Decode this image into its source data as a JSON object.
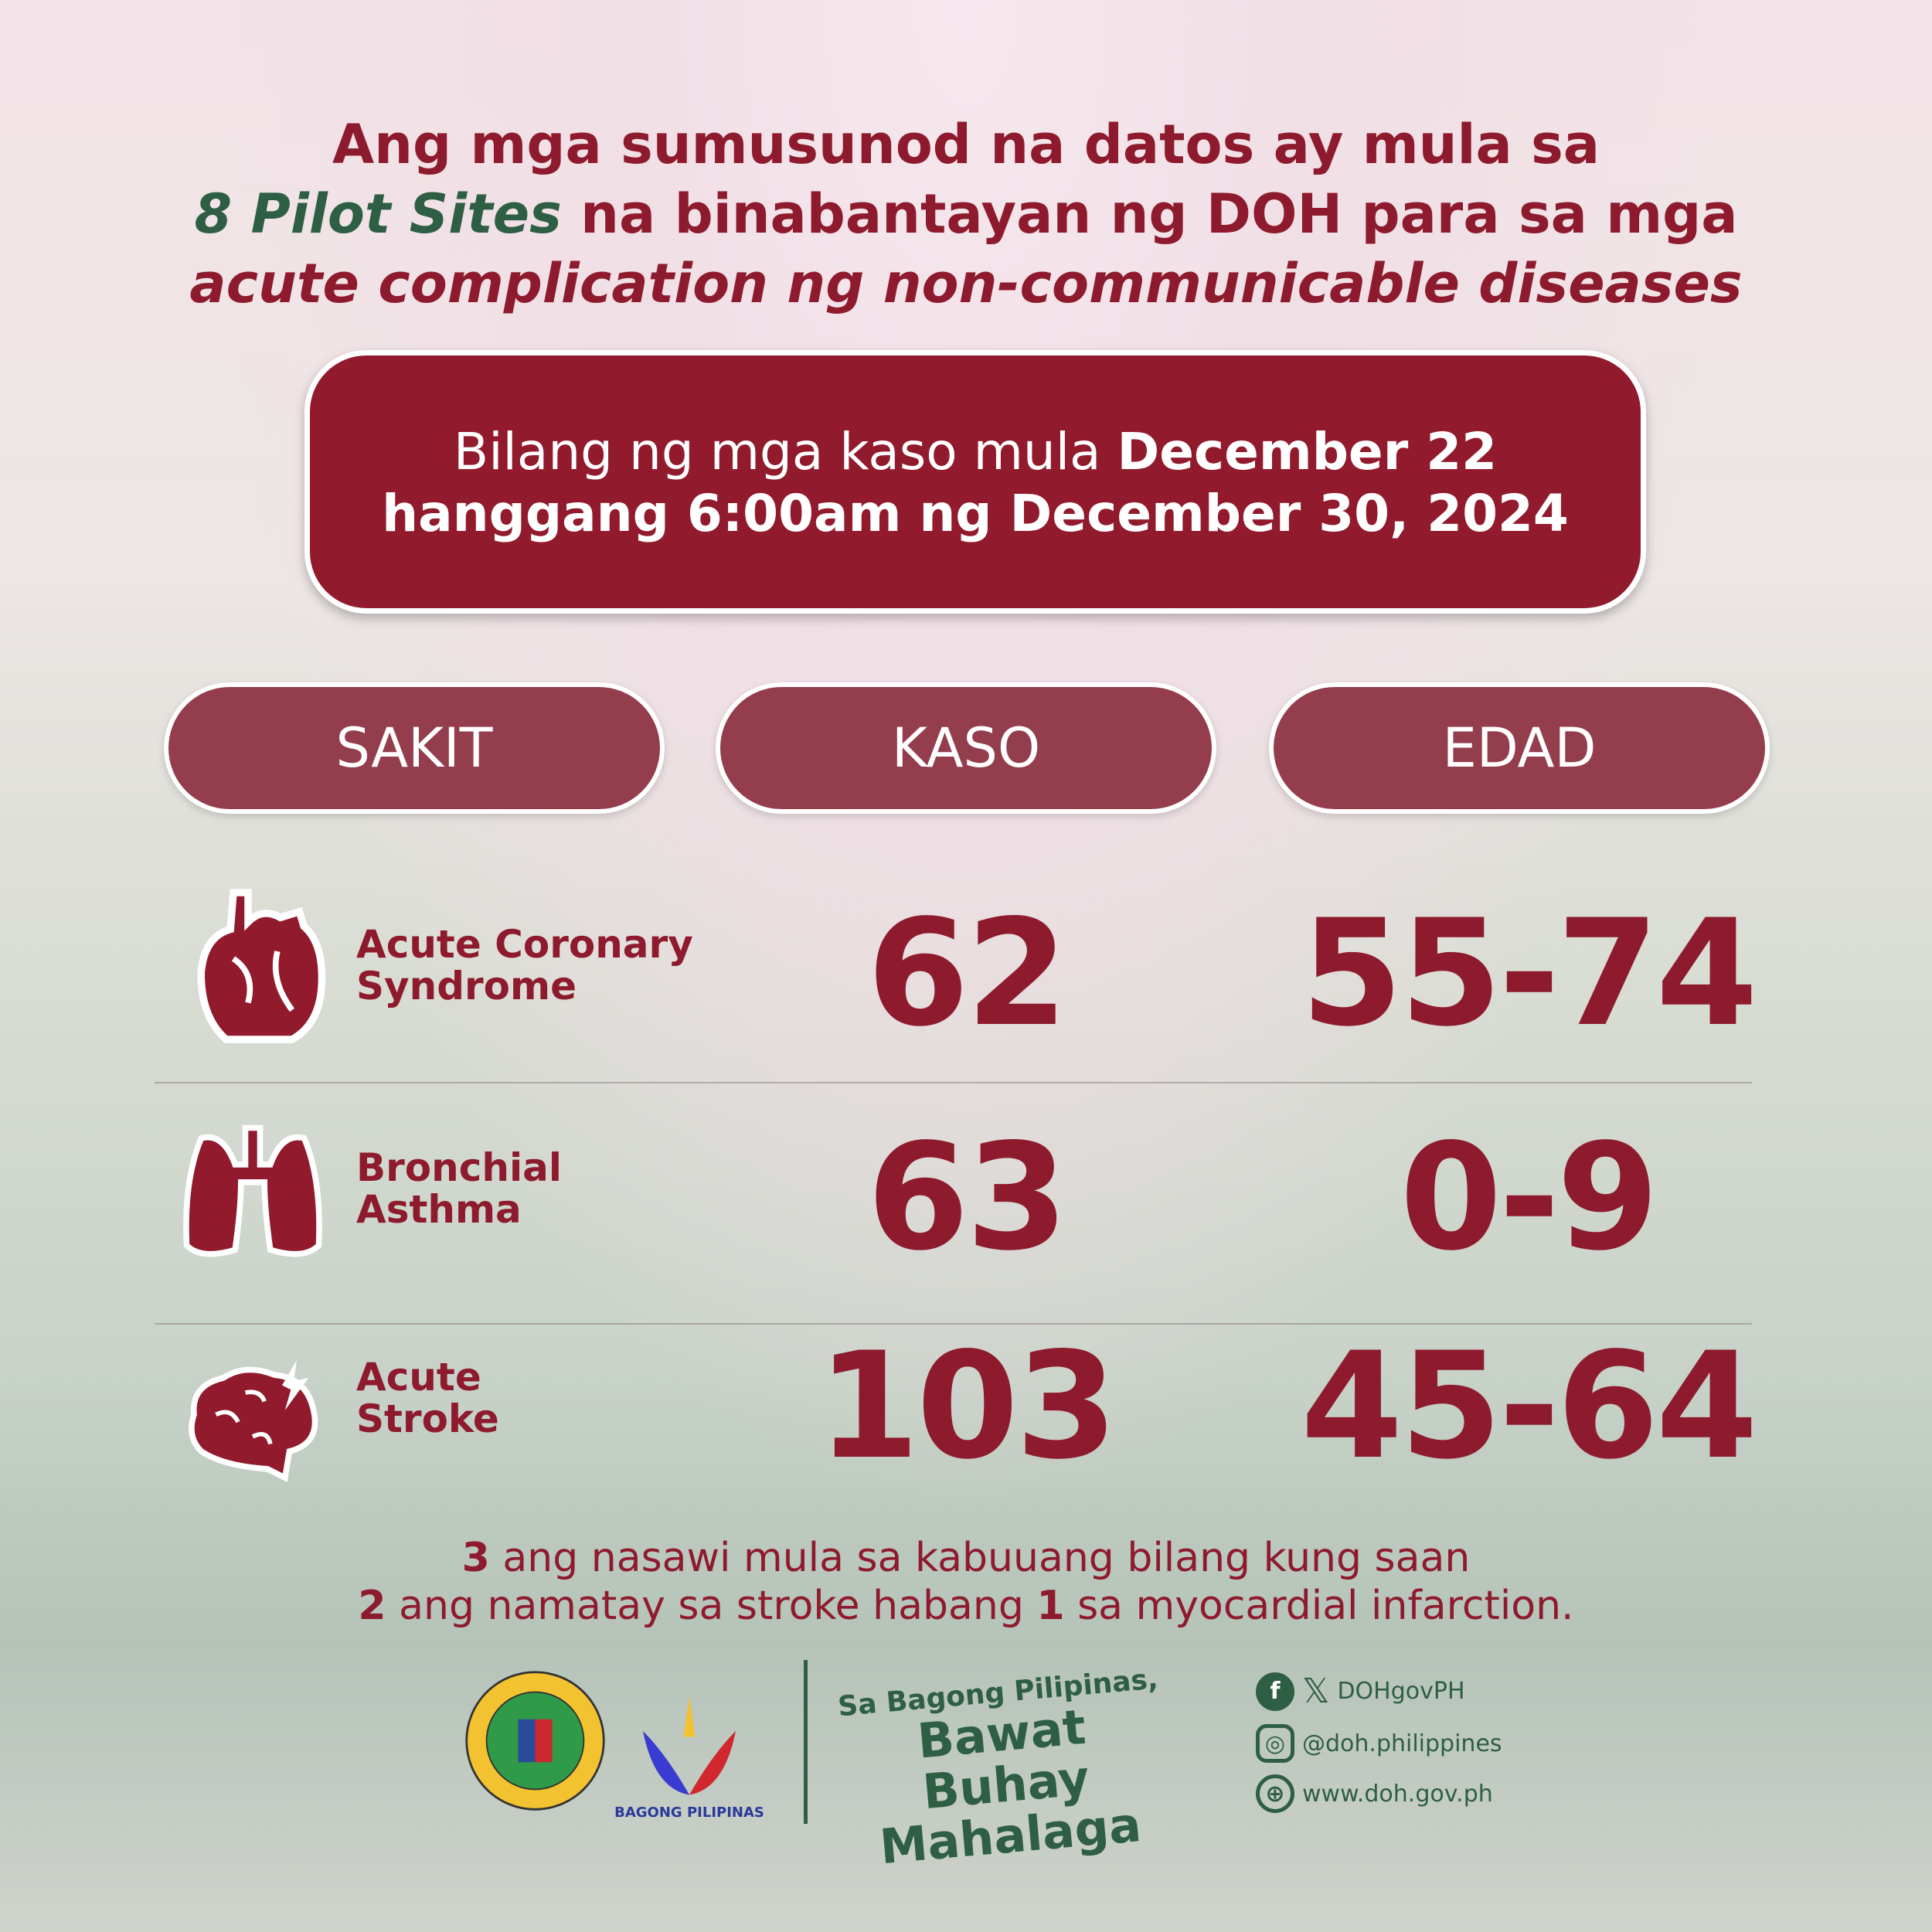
{
  "title": {
    "line1": "Ang mga sumusunod na datos ay mula sa",
    "line2_highlight": "8 Pilot Sites",
    "line2_rest": " na binabantayan ng DOH para sa mga",
    "line3": "acute complication ng non-communicable diseases"
  },
  "date_box": {
    "pre": "Bilang ng mga kaso mula ",
    "date1": "December 22",
    "line2": "hanggang 6:00am ng December 30, 2024"
  },
  "headers": [
    "SAKIT",
    "KASO",
    "EDAD"
  ],
  "rows": [
    {
      "icon": "heart-icon",
      "name_l1": "Acute Coronary",
      "name_l2": "Syndrome",
      "cases": "62",
      "age": "55-74"
    },
    {
      "icon": "lungs-icon",
      "name_l1": "Bronchial",
      "name_l2": "Asthma",
      "cases": "63",
      "age": "0-9"
    },
    {
      "icon": "brain-stroke-icon",
      "name_l1": "Acute",
      "name_l2": "Stroke",
      "cases": "103",
      "age": "45-64"
    }
  ],
  "footnote": {
    "n1": "3",
    "t1": " ang nasawi mula sa kabuuang bilang kung saan",
    "n2": "2",
    "t2": " ang namatay sa stroke habang ",
    "n3": "1",
    "t3": " sa myocardial infarction."
  },
  "footer": {
    "doh_seal": "REPUBLIC OF THE PHILIPPINES DEPARTMENT OF HEALTH",
    "bagong_pilipinas": "BAGONG PILIPINAS",
    "slogan1": "Sa Bagong Pilipinas,",
    "slogan2": "Bawat Buhay",
    "slogan3": "Mahalaga",
    "social_handle": "DOHgovPH",
    "instagram": "@doh.philippines",
    "website": "www.doh.gov.ph"
  },
  "colors": {
    "primary": "#921a2d",
    "pill": "#943e4d",
    "green": "#2e5e44"
  }
}
